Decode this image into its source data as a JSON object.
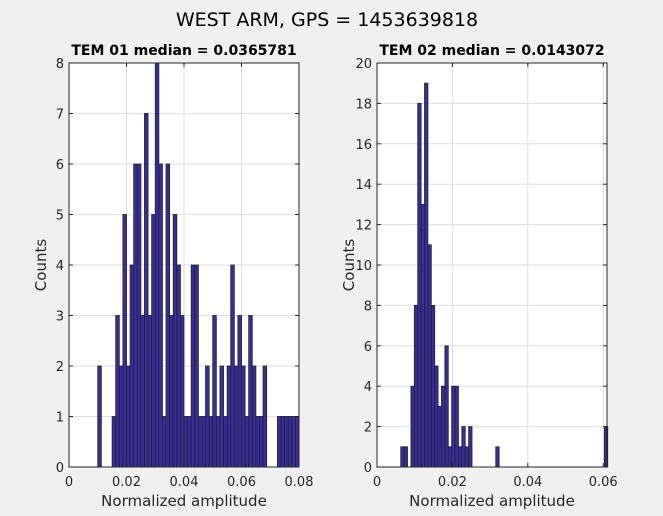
{
  "figure": {
    "suptitle": "WEST ARM, GPS = 1453639818"
  },
  "colors": {
    "background": "#f0f0f0",
    "axes_bg": "#ffffff",
    "bar_fill": "#3a2d95",
    "bar_edge": "#1b1f3a",
    "grid": "#dedede",
    "axis": "#262626"
  },
  "chart_data": [
    {
      "type": "bar",
      "title": "TEM 01 median = 0.0365781",
      "xlabel": "Normalized amplitude",
      "ylabel": "Counts",
      "xlim": [
        0,
        0.08
      ],
      "ylim": [
        0,
        8
      ],
      "grid": true,
      "bin_width": 0.00125,
      "x_ticks": [
        0,
        0.02,
        0.04,
        0.06,
        0.08
      ],
      "x_tick_labels": [
        "0",
        "0.02",
        "0.04",
        "0.06",
        "0.08"
      ],
      "y_ticks": [
        0,
        1,
        2,
        3,
        4,
        5,
        6,
        7,
        8
      ],
      "y_tick_labels": [
        "0",
        "1",
        "2",
        "3",
        "4",
        "5",
        "6",
        "7",
        "8"
      ],
      "bin_starts": [
        0.01,
        0.015,
        0.01625,
        0.0175,
        0.01875,
        0.02,
        0.02125,
        0.0225,
        0.02375,
        0.025,
        0.02625,
        0.0275,
        0.02875,
        0.03,
        0.03125,
        0.0325,
        0.03375,
        0.035,
        0.03625,
        0.0375,
        0.03875,
        0.04,
        0.04125,
        0.0425,
        0.04375,
        0.045,
        0.04625,
        0.0475,
        0.04875,
        0.05,
        0.05125,
        0.0525,
        0.05375,
        0.055,
        0.05625,
        0.0575,
        0.05875,
        0.06,
        0.06125,
        0.0625,
        0.06375,
        0.065,
        0.06625,
        0.0675,
        0.0725,
        0.07375,
        0.075,
        0.07625,
        0.0775,
        0.07875
      ],
      "counts": [
        2,
        1,
        3,
        2,
        5,
        2,
        4,
        6,
        6,
        3,
        7,
        3,
        5,
        8,
        6,
        1,
        6,
        3,
        5,
        4,
        3,
        1,
        1,
        4,
        4,
        1,
        1,
        2,
        1,
        3,
        1,
        2,
        1,
        2,
        4,
        2,
        3,
        2,
        1,
        3,
        2,
        1,
        1,
        2,
        1,
        1,
        1,
        1,
        1,
        1
      ]
    },
    {
      "type": "bar",
      "title": "TEM 02 median = 0.0143072",
      "xlabel": "Normalized amplitude",
      "ylabel": "Counts",
      "xlim": [
        0,
        0.061
      ],
      "ylim": [
        0,
        20
      ],
      "grid": true,
      "bin_width": 0.0009,
      "x_ticks": [
        0,
        0.02,
        0.04,
        0.06
      ],
      "x_tick_labels": [
        "0",
        "0.02",
        "0.04",
        "0.06"
      ],
      "y_ticks": [
        0,
        2,
        4,
        6,
        8,
        10,
        12,
        14,
        16,
        18,
        20
      ],
      "y_tick_labels": [
        "0",
        "2",
        "4",
        "6",
        "8",
        "10",
        "12",
        "14",
        "16",
        "18",
        "20"
      ],
      "bin_starts": [
        0.0063,
        0.0072,
        0.009,
        0.0099,
        0.0108,
        0.0117,
        0.0126,
        0.0135,
        0.0144,
        0.0153,
        0.0162,
        0.0171,
        0.018,
        0.0189,
        0.0198,
        0.0207,
        0.0216,
        0.0225,
        0.0234,
        0.0243,
        0.0315,
        0.0603
      ],
      "counts": [
        1,
        1,
        4,
        8,
        18,
        13,
        19,
        11,
        8,
        5,
        3,
        4,
        6,
        1,
        4,
        4,
        1,
        2,
        1,
        2,
        1,
        2
      ]
    }
  ]
}
